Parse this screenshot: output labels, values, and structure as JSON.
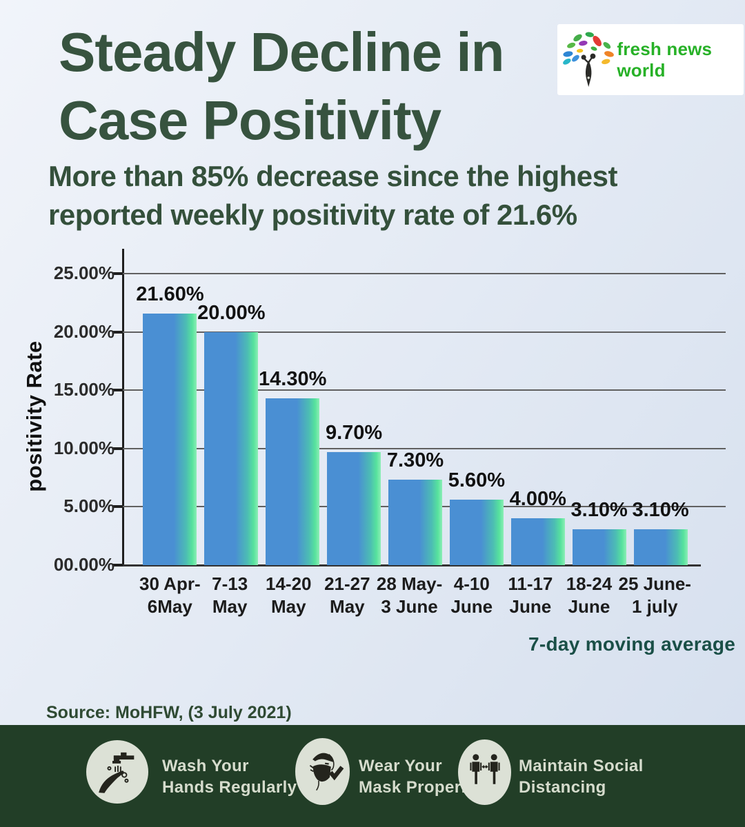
{
  "header": {
    "title_line1": "Steady Decline in",
    "title_line2": "Case Positivity",
    "subtitle_line1": "More than 85% decrease since the highest",
    "subtitle_line2": "reported weekly positivity rate of  21.6%",
    "logo_text": "fresh news world"
  },
  "chart_data": {
    "type": "bar",
    "title": "",
    "xlabel": "",
    "ylabel": "positivity Rate",
    "ylim": [
      0,
      25
    ],
    "grid": true,
    "legend": false,
    "yticks": [
      "25.00%",
      "20.00%",
      "15.00%",
      "10.00%",
      "5.00%",
      "00.00%"
    ],
    "categories": [
      [
        "30 Apr-",
        "6May"
      ],
      [
        "7-13",
        "May"
      ],
      [
        "14-20",
        "May"
      ],
      [
        "21-27",
        "May"
      ],
      [
        "28 May-",
        "3 June"
      ],
      [
        "4-10",
        "June"
      ],
      [
        "11-17",
        "June"
      ],
      [
        "18-24",
        "June"
      ],
      [
        "25 June-",
        "1 july"
      ]
    ],
    "values": [
      21.6,
      20.0,
      14.3,
      9.7,
      7.3,
      5.6,
      4.0,
      3.1,
      3.1
    ],
    "data_labels": [
      "21.60%",
      "20.00%",
      "14.30%",
      "9.70%",
      "7.30%",
      "5.60%",
      "4.00%",
      "3.10%",
      "3.10%"
    ],
    "note": "7-day moving average",
    "bar_color": "#4a8fd3",
    "bar_edge_color": "#57e29d"
  },
  "source": "Source: MoHFW,  (3 July 2021)",
  "footer": {
    "background": "#223e27",
    "items": [
      {
        "icon": "wash-hands-icon",
        "line1": "Wash Your",
        "line2": "Hands Regularly"
      },
      {
        "icon": "face-mask-icon",
        "line1": "Wear Your",
        "line2": "Mask Properly"
      },
      {
        "icon": "social-distancing-icon",
        "line1": "Maintain Social",
        "line2": "Distancing"
      }
    ]
  },
  "colors": {
    "title_green": "#37533f",
    "note_teal": "#1a4f47",
    "footer_green": "#223e27",
    "background_top": "#f1f4fa",
    "background_bottom": "#d5dfee"
  }
}
